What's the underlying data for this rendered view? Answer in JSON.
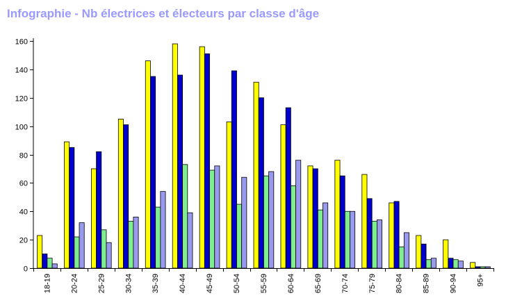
{
  "chart_data": {
    "type": "bar",
    "title": "Infographie - Nb électrices et électeurs par classe d'âge",
    "xlabel": "",
    "ylabel": "",
    "ylim": [
      0,
      160
    ],
    "yticks": [
      0,
      20,
      40,
      60,
      80,
      100,
      120,
      140,
      160
    ],
    "grid": false,
    "legend": "none",
    "categories": [
      "18-19",
      "20-24",
      "25-29",
      "30-34",
      "35-39",
      "40-44",
      "45-49",
      "50-54",
      "55-59",
      "60-64",
      "65-69",
      "70-74",
      "75-79",
      "80-84",
      "85-89",
      "90-94",
      "95+"
    ],
    "series": [
      {
        "color": "#ffff00",
        "values": [
          23,
          89,
          70,
          105,
          146,
          158,
          156,
          103,
          131,
          101,
          72,
          76,
          66,
          46,
          23,
          20,
          4
        ]
      },
      {
        "color": "#0000cc",
        "values": [
          10,
          85,
          82,
          101,
          135,
          136,
          151,
          139,
          120,
          113,
          70,
          65,
          49,
          47,
          17,
          7,
          1
        ]
      },
      {
        "color": "#80ee90",
        "values": [
          7,
          22,
          27,
          33,
          43,
          73,
          69,
          45,
          65,
          58,
          41,
          40,
          33,
          15,
          6,
          6,
          1
        ]
      },
      {
        "color": "#9999ee",
        "values": [
          3,
          32,
          18,
          36,
          54,
          39,
          72,
          64,
          68,
          76,
          46,
          40,
          34,
          25,
          7,
          5,
          1
        ]
      }
    ]
  }
}
